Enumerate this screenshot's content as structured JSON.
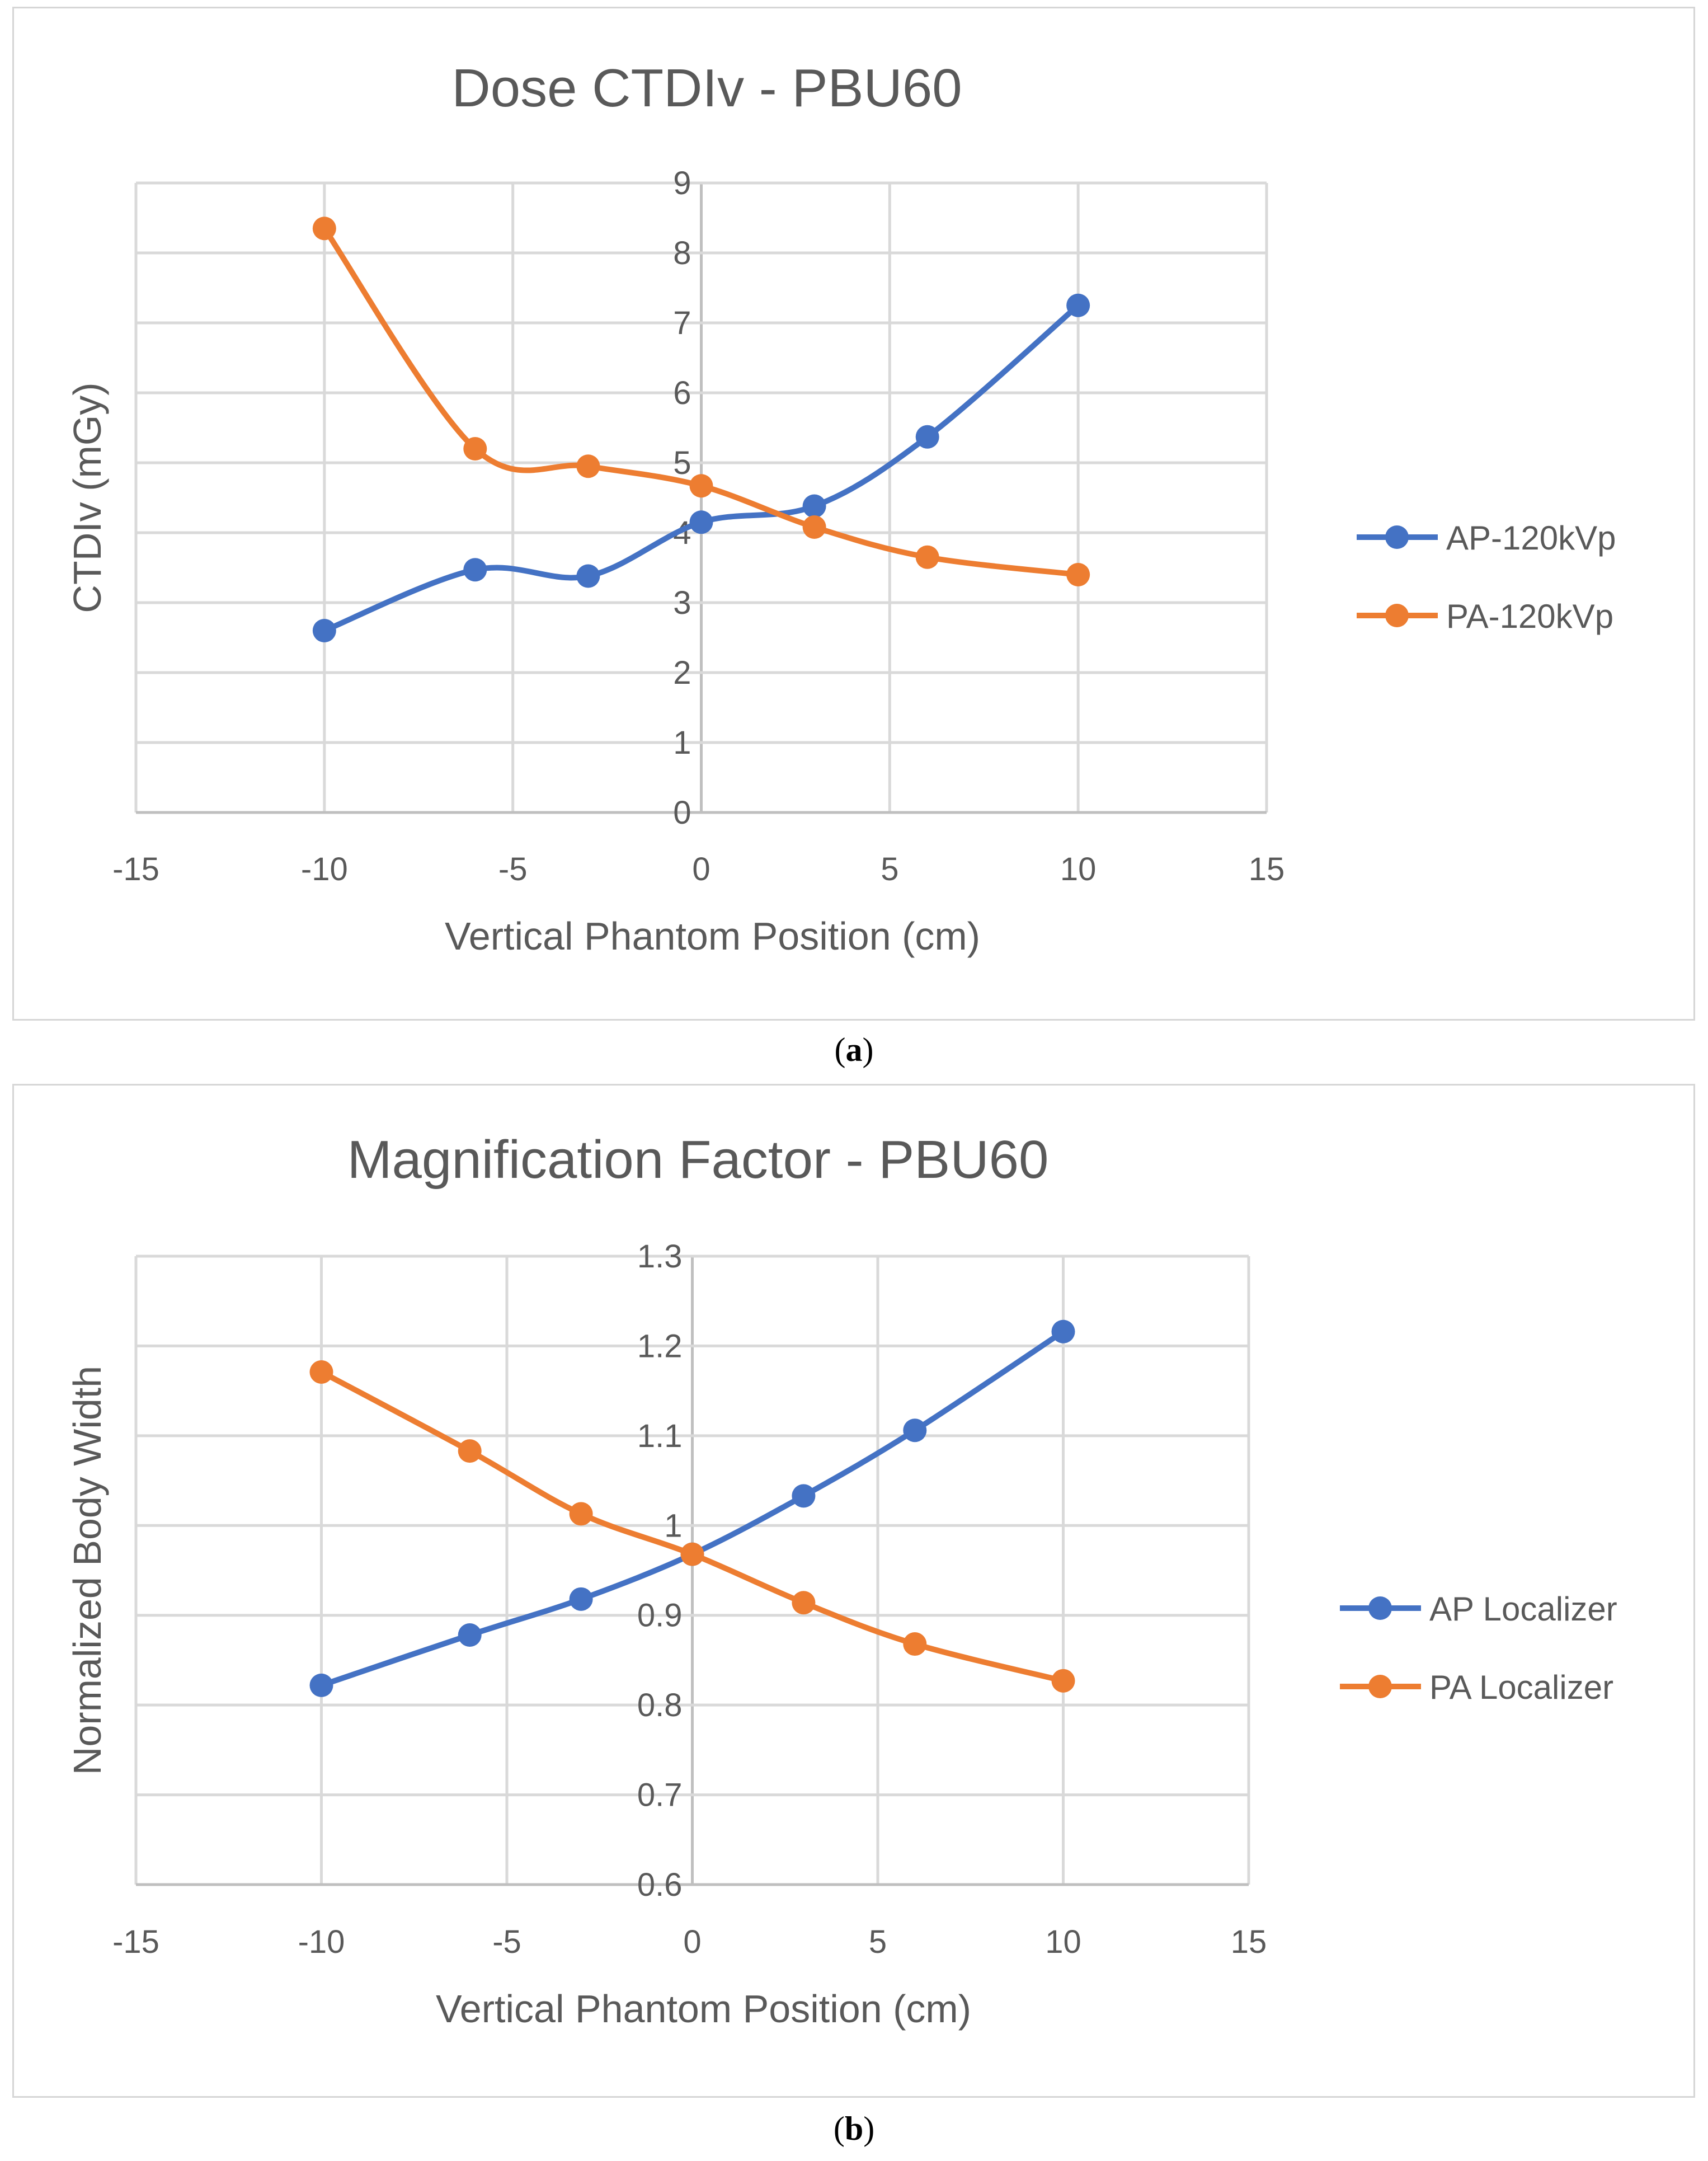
{
  "chart_data": [
    {
      "type": "line",
      "title": "Dose CTDIv - PBU60",
      "xlabel": "Vertical Phantom Position (cm)",
      "ylabel": "CTDIv (mGy)",
      "xlim": [
        -15,
        15
      ],
      "ylim": [
        0,
        9
      ],
      "xticks": [
        -15,
        -10,
        -5,
        0,
        5,
        10,
        15
      ],
      "yticks": [
        0,
        1,
        2,
        3,
        4,
        5,
        6,
        7,
        8,
        9
      ],
      "grid": true,
      "legend": "right",
      "x": [
        -10,
        -6,
        -3,
        0,
        3,
        6,
        10
      ],
      "series": [
        {
          "name": "AP-120kVp",
          "color": "#4472c4",
          "values": [
            2.6,
            3.47,
            3.38,
            4.15,
            4.38,
            5.37,
            7.25
          ]
        },
        {
          "name": "PA-120kVp",
          "color": "#ed7d31",
          "values": [
            8.35,
            5.2,
            4.95,
            4.67,
            4.08,
            3.65,
            3.4
          ]
        }
      ],
      "panel_label": "a"
    },
    {
      "type": "line",
      "title": "Magnification Factor - PBU60",
      "xlabel": "Vertical Phantom Position (cm)",
      "ylabel": "Normalized Body Width",
      "xlim": [
        -15,
        15
      ],
      "ylim": [
        0.6,
        1.3
      ],
      "xticks": [
        -15,
        -10,
        -5,
        0,
        5,
        10,
        15
      ],
      "yticks": [
        0.6,
        0.7,
        0.8,
        0.9,
        1,
        1.1,
        1.2,
        1.3
      ],
      "grid": true,
      "legend": "right",
      "x": [
        -10,
        -6,
        -3,
        0,
        3,
        6,
        10
      ],
      "series": [
        {
          "name": "AP Localizer",
          "color": "#4472c4",
          "values": [
            0.822,
            0.878,
            0.918,
            0.968,
            1.033,
            1.106,
            1.216
          ]
        },
        {
          "name": "PA Localizer",
          "color": "#ed7d31",
          "values": [
            1.171,
            1.083,
            1.013,
            0.968,
            0.914,
            0.868,
            0.827
          ]
        }
      ],
      "panel_label": "b"
    }
  ],
  "labels": {
    "a": "a",
    "b": "b"
  }
}
